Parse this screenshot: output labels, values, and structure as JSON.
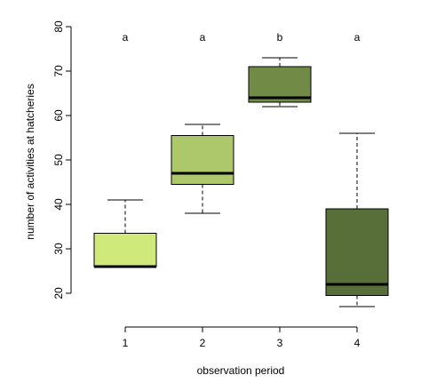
{
  "chart_data": {
    "type": "box",
    "title": "",
    "xlabel": "observation period",
    "ylabel": "number of activities at hatcheries",
    "ylim": [
      18,
      80
    ],
    "yticks": [
      20,
      30,
      40,
      50,
      60,
      70,
      80
    ],
    "categories": [
      "1",
      "2",
      "3",
      "4"
    ],
    "grid": false,
    "boxes": [
      {
        "category": "1",
        "min": 26,
        "q1": 26,
        "median": 26,
        "q3": 33.5,
        "max": 41,
        "color": "#cfe97a",
        "letter": "a"
      },
      {
        "category": "2",
        "min": 38,
        "q1": 44.5,
        "median": 47,
        "q3": 55.5,
        "max": 58,
        "color": "#adc86a",
        "letter": "a"
      },
      {
        "category": "3",
        "min": 62,
        "q1": 63,
        "median": 64,
        "q3": 71,
        "max": 73,
        "color": "#718a46",
        "letter": "b"
      },
      {
        "category": "4",
        "min": 17,
        "q1": 19.5,
        "median": 22,
        "q3": 39,
        "max": 56,
        "color": "#596f3a",
        "letter": "a"
      }
    ]
  }
}
